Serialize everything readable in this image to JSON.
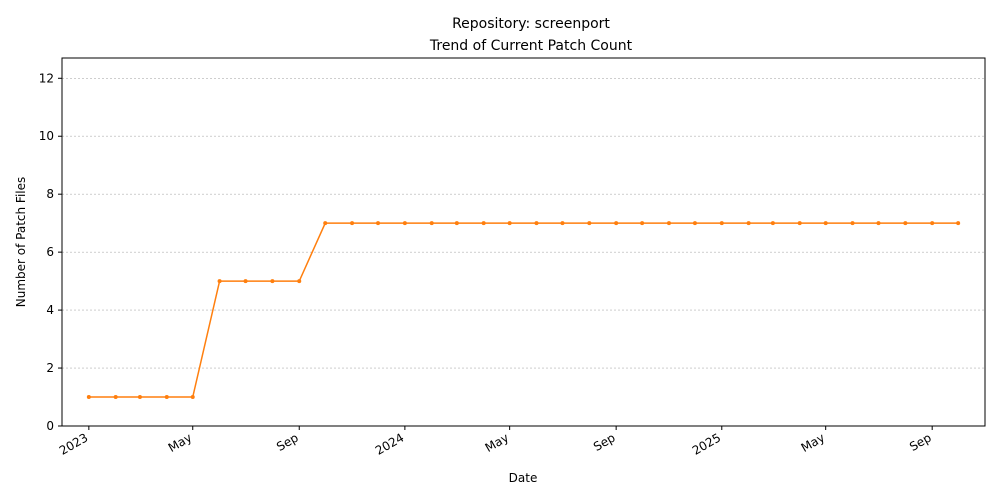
{
  "chart_data": {
    "type": "line",
    "title": "Repository: screenport",
    "subtitle": "Trend of Current Patch Count",
    "xlabel": "Date",
    "ylabel": "Number of Patch Files",
    "ylim": [
      0,
      12.7
    ],
    "y_ticks": [
      0,
      2,
      4,
      6,
      8,
      10,
      12
    ],
    "x_range": [
      "2022-12-01",
      "2025-11-01"
    ],
    "x_ticks": [
      {
        "date": "2023-01-01",
        "label": "2023"
      },
      {
        "date": "2023-05-01",
        "label": "May"
      },
      {
        "date": "2023-09-01",
        "label": "Sep"
      },
      {
        "date": "2024-01-01",
        "label": "2024"
      },
      {
        "date": "2024-05-01",
        "label": "May"
      },
      {
        "date": "2024-09-01",
        "label": "Sep"
      },
      {
        "date": "2025-01-01",
        "label": "2025"
      },
      {
        "date": "2025-05-01",
        "label": "May"
      },
      {
        "date": "2025-09-01",
        "label": "Sep"
      }
    ],
    "grid": "y-dashed",
    "series": [
      {
        "color": "#ff7f0e",
        "x": [
          "2023-01-01",
          "2023-02-01",
          "2023-03-01",
          "2023-04-01",
          "2023-05-01",
          "2023-06-01",
          "2023-07-01",
          "2023-08-01",
          "2023-09-01",
          "2023-10-01",
          "2023-11-01",
          "2023-12-01",
          "2024-01-01",
          "2024-02-01",
          "2024-03-01",
          "2024-04-01",
          "2024-05-01",
          "2024-06-01",
          "2024-07-01",
          "2024-08-01",
          "2024-09-01",
          "2024-10-01",
          "2024-11-01",
          "2024-12-01",
          "2025-01-01",
          "2025-02-01",
          "2025-03-01",
          "2025-04-01",
          "2025-05-01",
          "2025-06-01",
          "2025-07-01",
          "2025-08-01",
          "2025-09-01",
          "2025-10-01"
        ],
        "values": [
          1,
          1,
          1,
          1,
          1,
          5,
          5,
          5,
          5,
          7,
          7,
          7,
          7,
          7,
          7,
          7,
          7,
          7,
          7,
          7,
          7,
          7,
          7,
          7,
          7,
          7,
          7,
          7,
          7,
          7,
          7,
          7,
          7,
          7
        ]
      }
    ]
  }
}
